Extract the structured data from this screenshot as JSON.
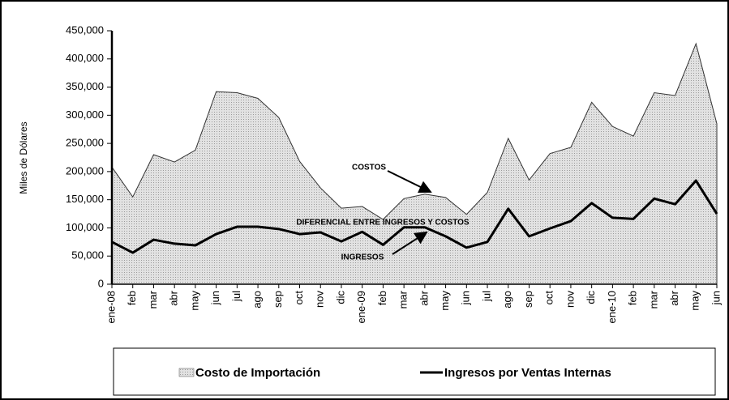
{
  "chart_data": {
    "type": "area_line",
    "y_label": "Miles de Dólares",
    "categories": [
      "ene-08",
      "feb",
      "mar",
      "abr",
      "may",
      "jun",
      "jul",
      "ago",
      "sep",
      "oct",
      "nov",
      "dic",
      "ene-09",
      "feb",
      "mar",
      "abr",
      "may",
      "jun",
      "jul",
      "ago",
      "sep",
      "oct",
      "nov",
      "dic",
      "ene-10",
      "feb",
      "mar",
      "abr",
      "may",
      "jun"
    ],
    "series": [
      {
        "name": "Costo de Importación",
        "color": "#d6d6d6",
        "kind": "area",
        "values": [
          208000,
          155000,
          230000,
          217000,
          238000,
          342000,
          340000,
          330000,
          296000,
          218000,
          171000,
          135000,
          138000,
          115000,
          152000,
          160000,
          154000,
          124000,
          163000,
          259000,
          185000,
          232000,
          243000,
          323000,
          280000,
          263000,
          340000,
          335000,
          427000,
          285000
        ]
      },
      {
        "name": "Ingresos por Ventas Internas",
        "color": "#000000",
        "kind": "line",
        "values": [
          75000,
          56000,
          79000,
          72000,
          69000,
          89000,
          102000,
          102000,
          98000,
          89000,
          92000,
          76000,
          93000,
          70000,
          101000,
          101000,
          85000,
          65000,
          75000,
          134000,
          85000,
          99000,
          112000,
          144000,
          118000,
          116000,
          152000,
          142000,
          184000,
          125000
        ]
      }
    ],
    "ylim": [
      0,
      450000
    ],
    "yticks": [
      0,
      {
        "value": 50000,
        "label": "50,000"
      },
      {
        "value": 100000,
        "label": "100,000"
      },
      {
        "value": 150000,
        "label": "150,000"
      },
      {
        "value": 200000,
        "label": "200,000"
      },
      {
        "value": 250000,
        "label": "250,000"
      },
      {
        "value": 300000,
        "label": "300,000"
      },
      {
        "value": 350000,
        "label": "350,000"
      },
      {
        "value": 400000,
        "label": "400,000"
      },
      {
        "value": 450000,
        "label": "450,000"
      }
    ],
    "annotations": [
      "COSTOS",
      "DIFERENCIAL ENTRE INGRESOS Y COSTOS",
      "INGRESOS"
    ],
    "legend": "bottom"
  }
}
